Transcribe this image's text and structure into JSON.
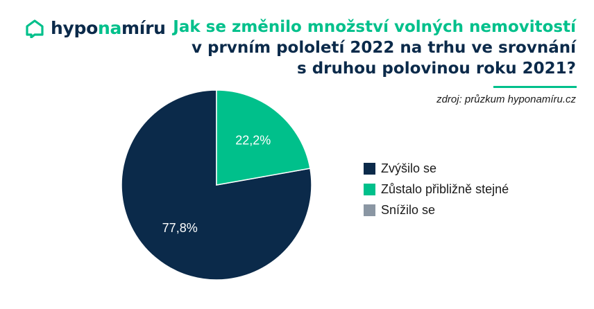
{
  "brand": {
    "icon": "house-chat-icon",
    "name_part1": "hypo",
    "name_part2": "na",
    "name_part3": "míru",
    "color_dark": "#0b2a4a",
    "color_accent": "#00c08b"
  },
  "chart_data": {
    "type": "pie",
    "title_lines": [
      "Jak se změnilo množství volných nemovitostí",
      "v prvním pololetí 2022 na trhu ve srovnání",
      "s druhou polovinou roku 2021?"
    ],
    "source": "zdroj: průzkum hyponamíru.cz",
    "categories": [
      "Zvýšilo se",
      "Zůstalo přibližně stejné",
      "Snížilo se"
    ],
    "values": [
      77.8,
      22.2,
      0
    ],
    "value_labels": [
      "77,8%",
      "22,2%",
      ""
    ],
    "colors": [
      "#0b2a4a",
      "#00c08b",
      "#8a96a3"
    ],
    "legend_position": "right"
  }
}
